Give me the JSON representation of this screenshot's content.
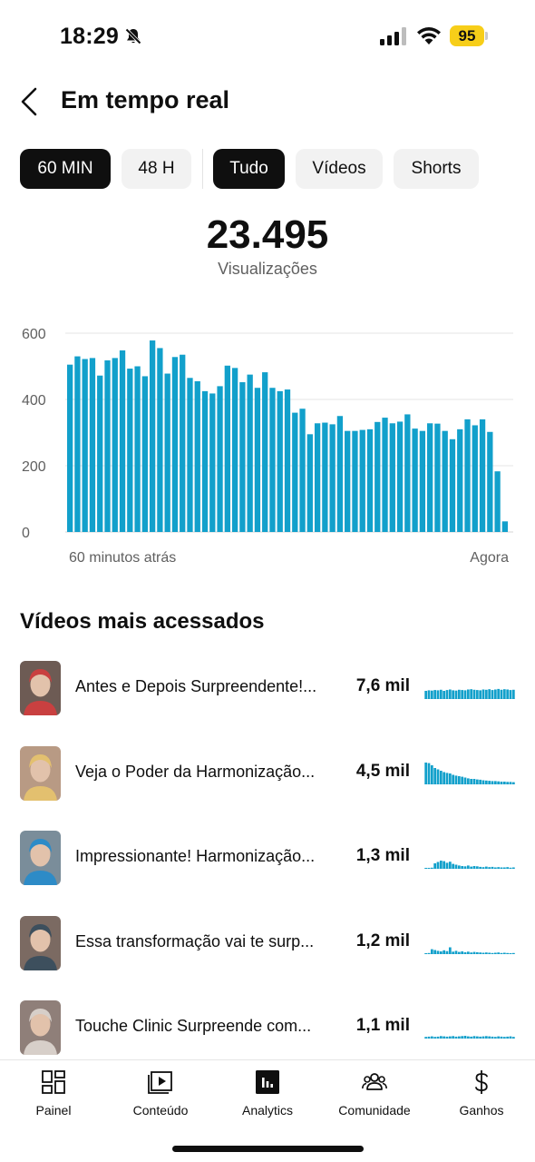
{
  "status_bar": {
    "time": "18:29",
    "battery": "95",
    "icons": [
      "bell-slash-icon",
      "signal-icon",
      "wifi-icon",
      "battery-icon"
    ]
  },
  "header": {
    "title": "Em tempo real",
    "back_icon": "chevron-left-icon"
  },
  "filters": {
    "time_ranges": [
      {
        "label": "60 MIN",
        "selected": true
      },
      {
        "label": "48 H",
        "selected": false
      }
    ],
    "content_types": [
      {
        "label": "Tudo",
        "selected": true
      },
      {
        "label": "Vídeos",
        "selected": false
      },
      {
        "label": "Shorts",
        "selected": false
      }
    ]
  },
  "metric": {
    "value": "23.495",
    "label": "Visualizações"
  },
  "chart_data": {
    "type": "bar",
    "color": "#12a0cb",
    "ylim": [
      0,
      600
    ],
    "yticks": [
      "600",
      "400",
      "200",
      "0"
    ],
    "ytick_values": [
      600,
      400,
      200,
      0
    ],
    "x_start_label": "60 minutos atrás",
    "x_end_label": "Agora",
    "grid": true,
    "values": [
      505,
      530,
      522,
      525,
      472,
      518,
      525,
      548,
      493,
      500,
      470,
      578,
      555,
      478,
      528,
      535,
      465,
      455,
      425,
      418,
      440,
      502,
      495,
      452,
      475,
      435,
      482,
      435,
      425,
      430,
      360,
      372,
      295,
      328,
      330,
      325,
      350,
      305,
      305,
      308,
      310,
      332,
      345,
      328,
      333,
      355,
      312,
      305,
      328,
      327,
      305,
      280,
      310,
      340,
      322,
      340,
      302,
      183,
      32
    ]
  },
  "top_videos": {
    "title": "Vídeos mais acessados",
    "items": [
      {
        "title": "Antes e Depois Surpreendente!...",
        "views": "7,6 mil",
        "spark": [
          30,
          32,
          31,
          33,
          32,
          34,
          30,
          33,
          35,
          32,
          31,
          34,
          33,
          32,
          35,
          36,
          34,
          33,
          32,
          35,
          34,
          36,
          33,
          35,
          37,
          34,
          36,
          35,
          33,
          34
        ],
        "thumb_bg": "#6d5b54",
        "thumb_fg": "#c94040"
      },
      {
        "title": "Veja o Poder da Harmonização...",
        "views": "4,5 mil",
        "spark": [
          80,
          78,
          70,
          60,
          55,
          50,
          45,
          42,
          40,
          35,
          32,
          30,
          28,
          25,
          22,
          20,
          20,
          18,
          17,
          15,
          14,
          13,
          12,
          12,
          11,
          10,
          10,
          9,
          9,
          8
        ],
        "thumb_bg": "#b89a84",
        "thumb_fg": "#e3c06f"
      },
      {
        "title": "Impressionante! Harmonização...",
        "views": "1,3 mil",
        "spark": [
          2,
          3,
          4,
          20,
          25,
          30,
          28,
          22,
          26,
          18,
          15,
          12,
          10,
          9,
          12,
          8,
          10,
          9,
          7,
          6,
          8,
          6,
          7,
          5,
          6,
          5,
          5,
          6,
          4,
          5
        ],
        "thumb_bg": "#7a8d9a",
        "thumb_fg": "#2d8bc7"
      },
      {
        "title": "Essa transformação vai te surp...",
        "views": "1,2 mil",
        "spark": [
          3,
          4,
          18,
          15,
          12,
          10,
          14,
          11,
          25,
          9,
          12,
          8,
          10,
          7,
          9,
          6,
          8,
          7,
          6,
          5,
          6,
          5,
          4,
          5,
          6,
          4,
          5,
          4,
          3,
          4
        ],
        "thumb_bg": "#7b6a62",
        "thumb_fg": "#3d4f5d"
      },
      {
        "title": "Touche Clinic Surpreende com...",
        "views": "1,1 mil",
        "spark": [
          6,
          7,
          8,
          6,
          7,
          9,
          8,
          7,
          8,
          9,
          7,
          8,
          9,
          10,
          8,
          7,
          9,
          8,
          7,
          8,
          9,
          8,
          7,
          6,
          8,
          7,
          6,
          7,
          8,
          6
        ],
        "thumb_bg": "#8f7f79",
        "thumb_fg": "#d7cfc9"
      }
    ]
  },
  "bottom_nav": {
    "items": [
      {
        "label": "Painel",
        "icon": "dashboard-icon",
        "active": false
      },
      {
        "label": "Conteúdo",
        "icon": "play-library-icon",
        "active": false
      },
      {
        "label": "Analytics",
        "icon": "analytics-icon",
        "active": true
      },
      {
        "label": "Comunidade",
        "icon": "community-icon",
        "active": false
      },
      {
        "label": "Ganhos",
        "icon": "dollar-icon",
        "active": false
      }
    ]
  }
}
